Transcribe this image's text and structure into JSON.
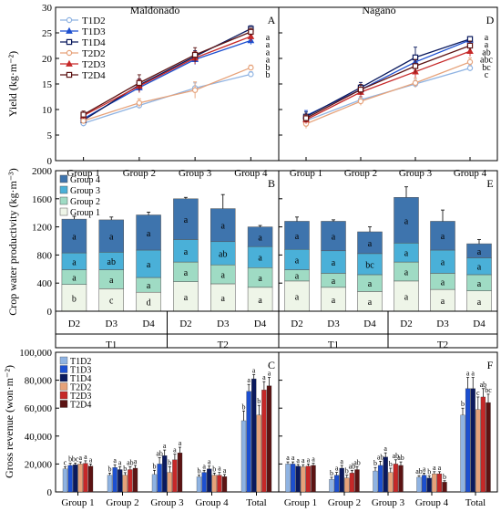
{
  "figure": {
    "columns": [
      "Maldonado",
      "Nagano"
    ],
    "treatments": [
      "T1D2",
      "T1D3",
      "T1D4",
      "T2D2",
      "T2D3",
      "T2D4"
    ],
    "colors": {
      "T1D2": "#8fb3e2",
      "T1D3": "#1c4fd0",
      "T1D4": "#0b1a5e",
      "T2D2": "#e6a27a",
      "T2D3": "#c62828",
      "T2D4": "#5c1313"
    }
  },
  "chart_data": [
    {
      "id": "A",
      "type": "line",
      "site": "Maldonado",
      "ylabel": "Yield (kg·m⁻²)",
      "ylim": [
        0,
        30
      ],
      "yticks": [
        0,
        5,
        10,
        15,
        20,
        25,
        30
      ],
      "categories": [
        "Group 1",
        "Group 2",
        "Group 3",
        "Group 4"
      ],
      "legend": [
        "T1D2",
        "T1D3",
        "T1D4",
        "T2D2",
        "T2D3",
        "T2D4"
      ],
      "series": [
        {
          "name": "T1D2",
          "values": [
            7.3,
            10.8,
            14.2,
            16.9
          ],
          "err": [
            0.6,
            0.6,
            1.0,
            0.5
          ],
          "marker": "circle",
          "filled": false
        },
        {
          "name": "T1D3",
          "values": [
            8.2,
            14.3,
            19.8,
            23.5
          ],
          "err": [
            0.5,
            1.0,
            1.0,
            0.8
          ],
          "marker": "triangle",
          "filled": true
        },
        {
          "name": "T1D4",
          "values": [
            7.9,
            14.8,
            20.4,
            25.8
          ],
          "err": [
            0.5,
            1.2,
            1.1,
            0.6
          ],
          "marker": "square",
          "filled": false
        },
        {
          "name": "T2D2",
          "values": [
            7.8,
            11.3,
            13.8,
            18.2
          ],
          "err": [
            0.6,
            0.8,
            1.6,
            0.5
          ],
          "marker": "circle",
          "filled": false
        },
        {
          "name": "T2D3",
          "values": [
            8.8,
            14.6,
            20.1,
            24.3
          ],
          "err": [
            0.6,
            1.3,
            1.2,
            1.0
          ],
          "marker": "triangle",
          "filled": true
        },
        {
          "name": "T2D4",
          "values": [
            9.0,
            15.2,
            20.7,
            25.2
          ],
          "err": [
            0.7,
            1.6,
            1.4,
            0.7
          ],
          "marker": "square",
          "filled": false
        }
      ],
      "end_labels": [
        "a",
        "a",
        "a",
        "a",
        "b",
        "b"
      ]
    },
    {
      "id": "D",
      "type": "line",
      "site": "Nagano",
      "ylim": [
        0,
        30
      ],
      "categories": [
        "Group 1",
        "Group 2",
        "Group 3",
        "Group 4"
      ],
      "series": [
        {
          "name": "T1D2",
          "values": [
            7.8,
            11.9,
            15.0,
            18.1
          ],
          "err": [
            0.7,
            0.7,
            0.7,
            0.6
          ],
          "marker": "circle",
          "filled": false
        },
        {
          "name": "T1D3",
          "values": [
            8.8,
            13.9,
            19.3,
            23.6
          ],
          "err": [
            1.0,
            0.9,
            1.2,
            0.6
          ],
          "marker": "triangle",
          "filled": true
        },
        {
          "name": "T1D4",
          "values": [
            8.6,
            14.3,
            20.2,
            23.8
          ],
          "err": [
            0.9,
            1.0,
            2.0,
            0.5
          ],
          "marker": "square",
          "filled": false
        },
        {
          "name": "T2D2",
          "values": [
            7.2,
            11.6,
            15.2,
            19.3
          ],
          "err": [
            0.9,
            0.8,
            0.9,
            0.8
          ],
          "marker": "circle",
          "filled": false
        },
        {
          "name": "T2D3",
          "values": [
            8.0,
            13.4,
            17.4,
            21.4
          ],
          "err": [
            0.8,
            1.0,
            1.2,
            1.0
          ],
          "marker": "triangle",
          "filled": true
        },
        {
          "name": "T2D4",
          "values": [
            8.3,
            13.9,
            18.5,
            22.5
          ],
          "err": [
            0.8,
            1.0,
            1.3,
            0.9
          ],
          "marker": "square",
          "filled": false
        }
      ],
      "end_labels": [
        "a",
        "a",
        "ab",
        "abc",
        "bc",
        "c"
      ]
    },
    {
      "id": "B",
      "type": "bar",
      "site": "Maldonado",
      "stacked": true,
      "ylabel": "Crop water productivity (kg·m⁻³)",
      "ylim": [
        0,
        2000
      ],
      "yticks": [
        0,
        400,
        800,
        1200,
        1600,
        2000
      ],
      "legend": [
        "Group 4",
        "Group 3",
        "Group 2",
        "Group 1"
      ],
      "stack_colors": {
        "Group 1": "#eef5e8",
        "Group 2": "#9fdbc4",
        "Group 3": "#4ab0d8",
        "Group 4": "#3e74ad"
      },
      "categories": [
        "D2",
        "D3",
        "D4",
        "D2",
        "D3",
        "D4"
      ],
      "groups": [
        "T1",
        "T2"
      ],
      "stacks": [
        {
          "segments": [
            380,
            210,
            240,
            480
          ],
          "err": [
            60,
            40,
            40,
            40
          ],
          "labels": [
            "b",
            "a",
            "a",
            "a"
          ]
        },
        {
          "segments": [
            320,
            270,
            250,
            460
          ],
          "err": [
            60,
            40,
            80,
            40
          ],
          "labels": [
            "c",
            "a",
            "ab",
            "a"
          ]
        },
        {
          "segments": [
            270,
            210,
            390,
            500
          ],
          "err": [
            30,
            50,
            40,
            40
          ],
          "labels": [
            "d",
            "a",
            "a",
            "a"
          ]
        },
        {
          "segments": [
            420,
            280,
            320,
            580
          ],
          "err": [
            40,
            30,
            150,
            20
          ],
          "labels": [
            "a",
            "a",
            "a",
            "a"
          ]
        },
        {
          "segments": [
            390,
            270,
            330,
            470
          ],
          "err": [
            30,
            40,
            70,
            200
          ],
          "labels": [
            "a",
            "a",
            "ab",
            "a"
          ]
        },
        {
          "segments": [
            340,
            280,
            300,
            280
          ],
          "err": [
            20,
            40,
            40,
            20
          ],
          "labels": [
            "a",
            "a",
            "a",
            "a"
          ]
        }
      ]
    },
    {
      "id": "E",
      "type": "bar",
      "site": "Nagano",
      "stacked": true,
      "ylim": [
        0,
        2000
      ],
      "categories": [
        "D2",
        "D3",
        "D4",
        "D2",
        "D3",
        "D4"
      ],
      "groups": [
        "T1",
        "T2"
      ],
      "stacks": [
        {
          "segments": [
            430,
            160,
            290,
            400
          ],
          "err": [
            40,
            30,
            40,
            60
          ],
          "labels": [
            "a",
            "a",
            "a",
            "a"
          ]
        },
        {
          "segments": [
            340,
            200,
            320,
            420
          ],
          "err": [
            30,
            30,
            60,
            20
          ],
          "labels": [
            "a",
            "a",
            "a",
            "a"
          ]
        },
        {
          "segments": [
            280,
            240,
            300,
            310
          ],
          "err": [
            30,
            40,
            40,
            70
          ],
          "labels": [
            "a",
            "a",
            "bc",
            "a"
          ]
        },
        {
          "segments": [
            430,
            270,
            270,
            650
          ],
          "err": [
            30,
            40,
            40,
            150
          ],
          "labels": [
            "a",
            "a",
            "a",
            "a"
          ]
        },
        {
          "segments": [
            310,
            230,
            330,
            410
          ],
          "err": [
            40,
            40,
            40,
            160
          ],
          "labels": [
            "a",
            "a",
            "a",
            "a"
          ]
        },
        {
          "segments": [
            290,
            230,
            240,
            200
          ],
          "err": [
            30,
            30,
            40,
            60
          ],
          "labels": [
            "a",
            "a",
            "a",
            "a"
          ]
        }
      ]
    },
    {
      "id": "C",
      "type": "bar",
      "site": "Maldonado",
      "ylabel": "Gross revenue (won·m⁻²)",
      "ylim": [
        0,
        100000
      ],
      "yticks": [
        0,
        20000,
        40000,
        60000,
        80000,
        100000
      ],
      "ytick_labels": [
        "0",
        "20,000",
        "40,000",
        "60,000",
        "80,000",
        "100,000"
      ],
      "legend": [
        "T1D2",
        "T1D3",
        "T1D4",
        "T2D2",
        "T2D3",
        "T2D4"
      ],
      "categories": [
        "Group 1",
        "Group 2",
        "Group 3",
        "Group 4",
        "Total"
      ],
      "series": [
        {
          "name": "T1D2",
          "values": [
            16500,
            12000,
            12500,
            10800,
            51000
          ],
          "err": [
            1500,
            1500,
            3000,
            1200,
            7000
          ],
          "labels": [
            "c",
            "b",
            "b",
            "b",
            "b"
          ]
        },
        {
          "name": "T1D3",
          "values": [
            19000,
            17500,
            20000,
            14000,
            72000
          ],
          "err": [
            1500,
            2000,
            4500,
            1500,
            5000
          ],
          "labels": [
            "b",
            "a",
            "ab",
            "a",
            "a"
          ]
        },
        {
          "name": "T1D4",
          "values": [
            19500,
            16000,
            26000,
            16500,
            81000
          ],
          "err": [
            1200,
            2000,
            4000,
            2000,
            3000
          ],
          "labels": [
            "bc",
            "a",
            "a",
            "a",
            "a"
          ]
        },
        {
          "name": "T2D2",
          "values": [
            20000,
            12000,
            14000,
            12000,
            55000
          ],
          "err": [
            1500,
            1800,
            4000,
            1500,
            7000
          ],
          "labels": [
            "a",
            "b",
            "b",
            "b",
            "b"
          ]
        },
        {
          "name": "T2D3",
          "values": [
            20500,
            16000,
            23000,
            12000,
            73000
          ],
          "err": [
            1800,
            2000,
            4000,
            2000,
            6000
          ],
          "labels": [
            "a",
            "ab",
            "a",
            "a",
            "a"
          ]
        },
        {
          "name": "T2D4",
          "values": [
            18500,
            17000,
            28000,
            11000,
            76000
          ],
          "err": [
            1500,
            2000,
            4000,
            1500,
            6000
          ],
          "labels": [
            "a",
            "a",
            "a",
            "a",
            "a"
          ]
        }
      ]
    },
    {
      "id": "F",
      "type": "bar",
      "site": "Nagano",
      "ylim": [
        0,
        100000
      ],
      "categories": [
        "Group 1",
        "Group 2",
        "Group 3",
        "Group 4",
        "Total"
      ],
      "series": [
        {
          "name": "T1D2",
          "values": [
            20000,
            9000,
            15000,
            10500,
            55000
          ],
          "err": [
            1500,
            1500,
            2500,
            1200,
            5000
          ],
          "labels": [
            "a",
            "b",
            "b",
            "ab",
            "b"
          ]
        },
        {
          "name": "T1D3",
          "values": [
            20000,
            12000,
            19000,
            12000,
            74000
          ],
          "err": [
            1500,
            2000,
            3000,
            1500,
            8000
          ],
          "labels": [
            "a",
            "a",
            "ab",
            "a",
            "a"
          ]
        },
        {
          "name": "T1D4",
          "values": [
            18500,
            17000,
            25000,
            10000,
            74000
          ],
          "err": [
            1200,
            2000,
            3000,
            1500,
            8000
          ],
          "labels": [
            "a",
            "a",
            "a",
            "b",
            "a"
          ]
        },
        {
          "name": "T2D2",
          "values": [
            18000,
            10000,
            14000,
            13000,
            59000
          ],
          "err": [
            1500,
            2000,
            3000,
            1500,
            9000
          ],
          "labels": [
            "a",
            "b",
            "b",
            "a",
            "c"
          ]
        },
        {
          "name": "T2D3",
          "values": [
            18500,
            13500,
            20000,
            13000,
            68000
          ],
          "err": [
            1500,
            2000,
            3000,
            1500,
            6000
          ],
          "labels": [
            "a",
            "ab",
            "ab",
            "a",
            "ab"
          ]
        },
        {
          "name": "T2D4",
          "values": [
            19000,
            16000,
            19000,
            7000,
            64000
          ],
          "err": [
            1500,
            2000,
            2500,
            1000,
            6000
          ],
          "labels": [
            "a",
            "ab",
            "ab",
            "b",
            "bc"
          ]
        }
      ]
    }
  ]
}
